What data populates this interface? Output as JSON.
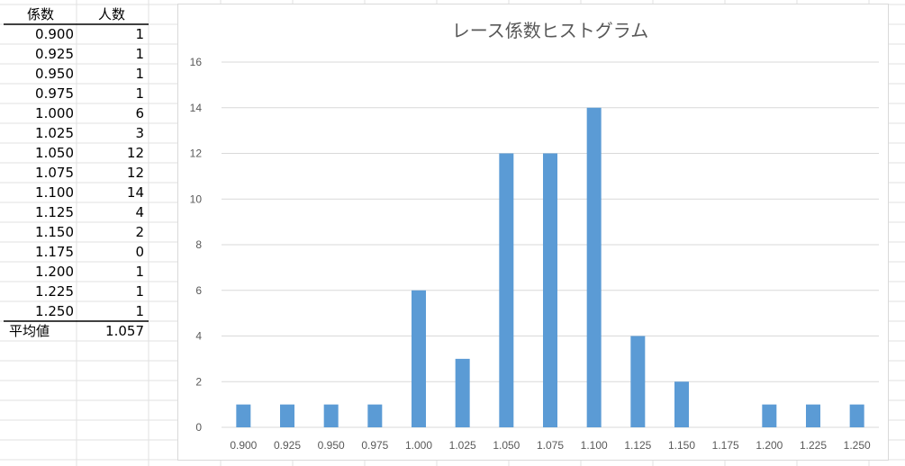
{
  "table": {
    "header": {
      "col_a": "係数",
      "col_b": "人数"
    },
    "rows": [
      {
        "coef": "0.900",
        "count": "1"
      },
      {
        "coef": "0.925",
        "count": "1"
      },
      {
        "coef": "0.950",
        "count": "1"
      },
      {
        "coef": "0.975",
        "count": "1"
      },
      {
        "coef": "1.000",
        "count": "6"
      },
      {
        "coef": "1.025",
        "count": "3"
      },
      {
        "coef": "1.050",
        "count": "12"
      },
      {
        "coef": "1.075",
        "count": "12"
      },
      {
        "coef": "1.100",
        "count": "14"
      },
      {
        "coef": "1.125",
        "count": "4"
      },
      {
        "coef": "1.150",
        "count": "2"
      },
      {
        "coef": "1.175",
        "count": "0"
      },
      {
        "coef": "1.200",
        "count": "1"
      },
      {
        "coef": "1.225",
        "count": "1"
      },
      {
        "coef": "1.250",
        "count": "1"
      }
    ],
    "average": {
      "label": "平均値",
      "value": "1.057"
    }
  },
  "chart_data": {
    "type": "bar",
    "title": "レース係数ヒストグラム",
    "xlabel": "",
    "ylabel": "",
    "categories": [
      "0.900",
      "0.925",
      "0.950",
      "0.975",
      "1.000",
      "1.025",
      "1.050",
      "1.075",
      "1.100",
      "1.125",
      "1.150",
      "1.175",
      "1.200",
      "1.225",
      "1.250"
    ],
    "values": [
      1,
      1,
      1,
      1,
      6,
      3,
      12,
      12,
      14,
      4,
      2,
      0,
      1,
      1,
      1
    ],
    "ylim": [
      0,
      16
    ],
    "yticks": [
      "0",
      "2",
      "4",
      "6",
      "8",
      "10",
      "12",
      "14",
      "16"
    ],
    "grid": true,
    "legend": "none",
    "bar_color": "#5b9bd5",
    "grid_color": "#d9d9d9",
    "title_color": "#595959",
    "tick_color": "#595959"
  }
}
